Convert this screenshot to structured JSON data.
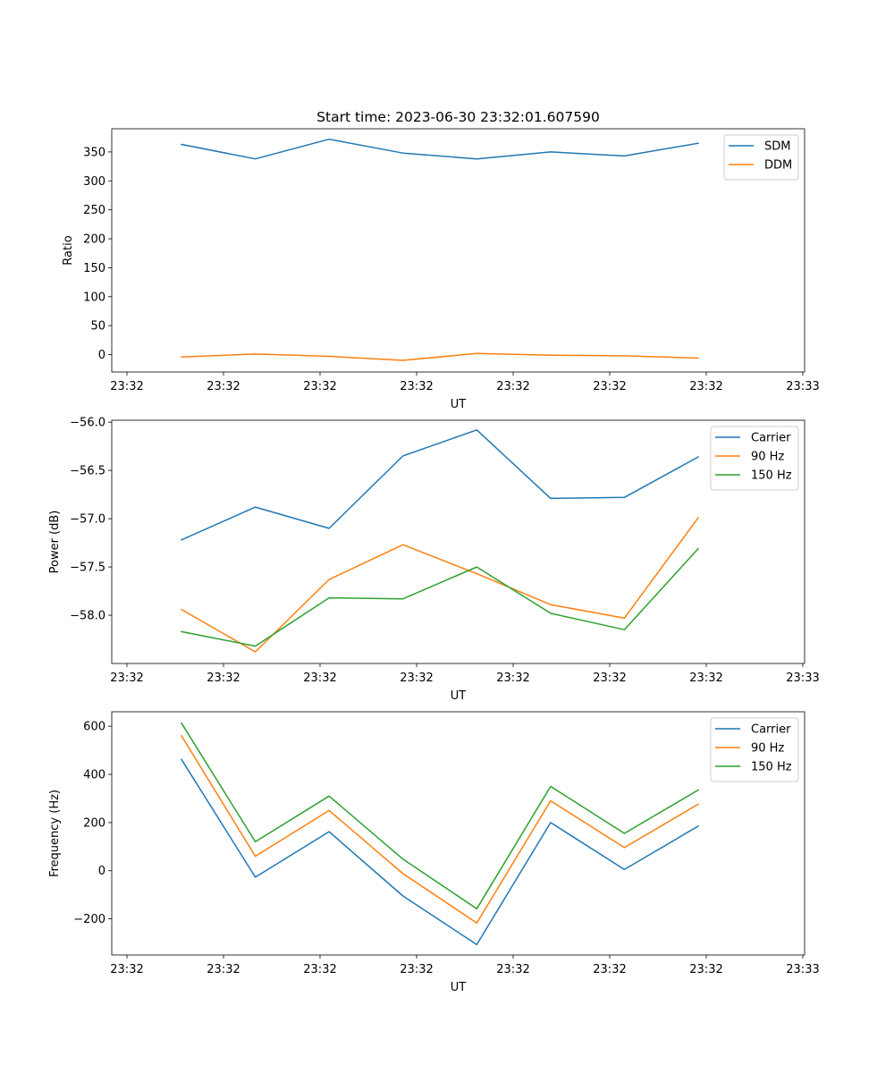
{
  "figure": {
    "title": "Start time: 2023-06-30 23:32:01.607590"
  },
  "chart_data": [
    {
      "type": "line",
      "xlabel": "UT",
      "ylabel": "Ratio",
      "x_tick_labels": [
        "23:32",
        "23:32",
        "23:32",
        "23:32",
        "23:32",
        "23:32",
        "23:32"
      ],
      "x_tick_last_label": "23:33",
      "y_ticks": [
        0,
        50,
        100,
        150,
        200,
        250,
        300,
        350
      ],
      "y_tick_labels": [
        "0",
        "50",
        "100",
        "150",
        "200",
        "250",
        "300",
        "350"
      ],
      "ylim": [
        -30,
        390
      ],
      "legend_position": "upper right",
      "series": [
        {
          "name": "SDM",
          "color": "#1f77b4",
          "values": [
            363,
            338,
            372,
            348,
            338,
            350,
            343,
            365
          ]
        },
        {
          "name": "DDM",
          "color": "#ff7f0e",
          "values": [
            -4,
            1,
            -3,
            -10,
            2,
            -1,
            -2,
            -6
          ]
        }
      ]
    },
    {
      "type": "line",
      "xlabel": "UT",
      "ylabel": "Power (dB)",
      "x_tick_labels": [
        "23:32",
        "23:32",
        "23:32",
        "23:32",
        "23:32",
        "23:32",
        "23:32"
      ],
      "x_tick_last_label": "23:33",
      "y_ticks": [
        -58.0,
        -57.5,
        -57.0,
        -56.5,
        -56.0
      ],
      "y_tick_labels": [
        "−58.0",
        "−57.5",
        "−57.0",
        "−56.5",
        "−56.0"
      ],
      "ylim": [
        -58.5,
        -55.98
      ],
      "legend_position": "upper right",
      "series": [
        {
          "name": "Carrier",
          "color": "#1f77b4",
          "values": [
            -57.22,
            -56.88,
            -57.1,
            -56.35,
            -56.08,
            -56.79,
            -56.78,
            -56.36
          ]
        },
        {
          "name": "90 Hz",
          "color": "#ff7f0e",
          "values": [
            -57.94,
            -58.38,
            -57.63,
            -57.27,
            -57.57,
            -57.89,
            -58.03,
            -56.99
          ]
        },
        {
          "name": "150 Hz",
          "color": "#2ca02c",
          "values": [
            -58.17,
            -58.32,
            -57.82,
            -57.83,
            -57.5,
            -57.98,
            -58.15,
            -57.31
          ]
        }
      ]
    },
    {
      "type": "line",
      "xlabel": "UT",
      "ylabel": "Frequency (Hz)",
      "x_tick_labels": [
        "23:32",
        "23:32",
        "23:32",
        "23:32",
        "23:32",
        "23:32",
        "23:32"
      ],
      "x_tick_last_label": "23:33",
      "y_ticks": [
        -200,
        0,
        200,
        400,
        600
      ],
      "y_tick_labels": [
        "−200",
        "0",
        "200",
        "400",
        "600"
      ],
      "ylim": [
        -350,
        660
      ],
      "legend_position": "upper right",
      "series": [
        {
          "name": "Carrier",
          "color": "#1f77b4",
          "values": [
            462,
            -27,
            162,
            -105,
            -307,
            200,
            5,
            185
          ]
        },
        {
          "name": "90 Hz",
          "color": "#ff7f0e",
          "values": [
            560,
            60,
            250,
            -12,
            -217,
            290,
            96,
            276
          ]
        },
        {
          "name": "150 Hz",
          "color": "#2ca02c",
          "values": [
            613,
            120,
            310,
            48,
            -158,
            350,
            155,
            335
          ]
        }
      ]
    }
  ]
}
